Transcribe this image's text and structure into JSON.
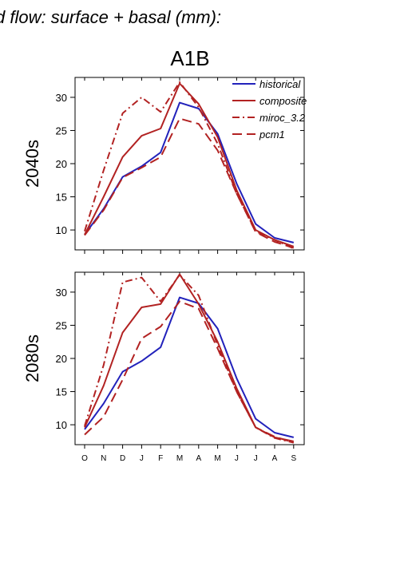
{
  "figure": {
    "main_title": "d flow: surface + basal (mm):",
    "panel_title": "A1B"
  },
  "chart_data": {
    "type": "line",
    "categories": [
      "O",
      "N",
      "D",
      "J",
      "F",
      "M",
      "A",
      "M",
      "J",
      "J",
      "A",
      "S"
    ],
    "ylim": [
      7,
      33
    ],
    "yticks": [
      10,
      15,
      20,
      25,
      30
    ],
    "legend_position": "top-right",
    "colors": {
      "historical": "#2222bb",
      "scenario": "#b22222"
    },
    "legend": [
      {
        "key": "historical",
        "label": "historical"
      },
      {
        "key": "composite",
        "label": "composite"
      },
      {
        "key": "miroc",
        "label": "miroc_3.2"
      },
      {
        "key": "pcm1",
        "label": "pcm1"
      }
    ],
    "panels": [
      {
        "label": "2040s",
        "series": {
          "historical": [
            9.3,
            13.2,
            18.0,
            19.6,
            21.7,
            29.2,
            28.3,
            24.5,
            17.0,
            10.9,
            8.8,
            8.1
          ],
          "composite": [
            9.3,
            15.0,
            21.0,
            24.2,
            25.3,
            32.1,
            29.0,
            24.0,
            16.0,
            10.0,
            8.5,
            7.5
          ],
          "miroc": [
            9.8,
            19.0,
            27.6,
            30.0,
            27.8,
            32.3,
            28.5,
            23.0,
            15.5,
            9.8,
            8.5,
            7.2
          ],
          "pcm1": [
            9.2,
            13.0,
            17.9,
            19.4,
            21.0,
            26.8,
            26.0,
            22.0,
            15.5,
            9.7,
            8.2,
            7.3
          ]
        }
      },
      {
        "label": "2080s",
        "series": {
          "historical": [
            9.3,
            13.2,
            18.0,
            19.6,
            21.7,
            29.2,
            28.3,
            24.5,
            17.0,
            10.9,
            8.8,
            8.1
          ],
          "composite": [
            9.6,
            15.9,
            23.9,
            27.7,
            28.2,
            32.7,
            28.2,
            22.5,
            15.5,
            9.6,
            8.1,
            7.5
          ],
          "miroc": [
            9.8,
            19.0,
            31.5,
            32.2,
            28.6,
            32.6,
            29.5,
            22.0,
            15.0,
            9.6,
            8.0,
            7.3
          ],
          "pcm1": [
            8.5,
            11.2,
            16.8,
            23.0,
            24.8,
            28.6,
            27.5,
            21.5,
            15.0,
            9.6,
            8.2,
            7.3
          ]
        }
      }
    ]
  }
}
